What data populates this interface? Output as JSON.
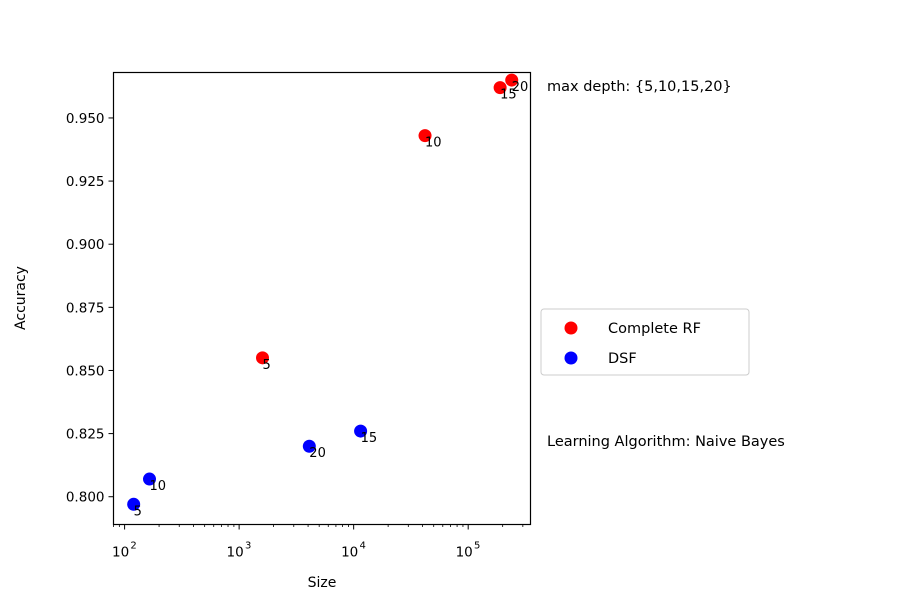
{
  "chart_data": {
    "type": "scatter",
    "xlabel": "Size",
    "ylabel": "Accuracy",
    "xscale": "log",
    "xlim": [
      80,
      350000
    ],
    "ylim": [
      0.789,
      0.968
    ],
    "x_ticks": [
      {
        "value": 100,
        "base": "10",
        "exp": "2"
      },
      {
        "value": 1000,
        "base": "10",
        "exp": "3"
      },
      {
        "value": 10000,
        "base": "10",
        "exp": "4"
      },
      {
        "value": 100000,
        "base": "10",
        "exp": "5"
      }
    ],
    "y_ticks": [
      0.8,
      0.825,
      0.85,
      0.875,
      0.9,
      0.925,
      0.95
    ],
    "y_tick_labels": [
      "0.800",
      "0.825",
      "0.850",
      "0.875",
      "0.900",
      "0.925",
      "0.950"
    ],
    "grid": false,
    "legend_position": "right",
    "series": [
      {
        "name": "Complete RF",
        "color": "#ff0000",
        "points": [
          {
            "x": 1600,
            "y": 0.855,
            "label": "5"
          },
          {
            "x": 42000,
            "y": 0.943,
            "label": "10"
          },
          {
            "x": 190000,
            "y": 0.962,
            "label": "15"
          },
          {
            "x": 240000,
            "y": 0.965,
            "label": "20"
          }
        ]
      },
      {
        "name": "DSF",
        "color": "#0000ff",
        "points": [
          {
            "x": 120,
            "y": 0.797,
            "label": "5"
          },
          {
            "x": 165,
            "y": 0.807,
            "label": "10"
          },
          {
            "x": 11500,
            "y": 0.826,
            "label": "15"
          },
          {
            "x": 4100,
            "y": 0.82,
            "label": "20"
          }
        ]
      }
    ],
    "annotations": {
      "depth_note": "max depth: {5,10,15,20}",
      "algorithm_note": "Learning Algorithm: Naive Bayes"
    }
  }
}
